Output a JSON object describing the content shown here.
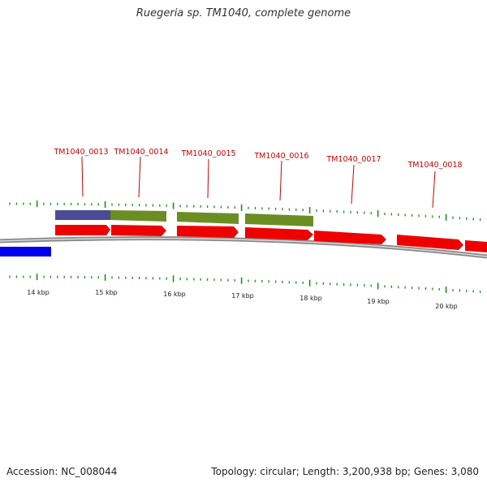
{
  "title": "Ruegeria sp. TM1040, complete genome",
  "footer": {
    "accession": "Accession: NC_008044",
    "summary": "Topology: circular; Length: 3,200,938 bp; Genes: 3,080"
  },
  "colors": {
    "cds": "#ee0000",
    "cog_green": "#6b8e23",
    "cog_purple": "#4b4b96",
    "other_strand": "#0000ee",
    "ticks": "#1e8c1e",
    "labels": "#cc0000",
    "backbone": "#888888"
  },
  "kbp_labels": [
    "14 kbp",
    "15 kbp",
    "16 kbp",
    "17 kbp",
    "18 kbp",
    "19 kbp",
    "20 kbp"
  ],
  "gene_labels": [
    "TM1040_0013",
    "TM1040_0014",
    "TM1040_0015",
    "TM1040_0016",
    "TM1040_0017",
    "TM1040_0018"
  ]
}
